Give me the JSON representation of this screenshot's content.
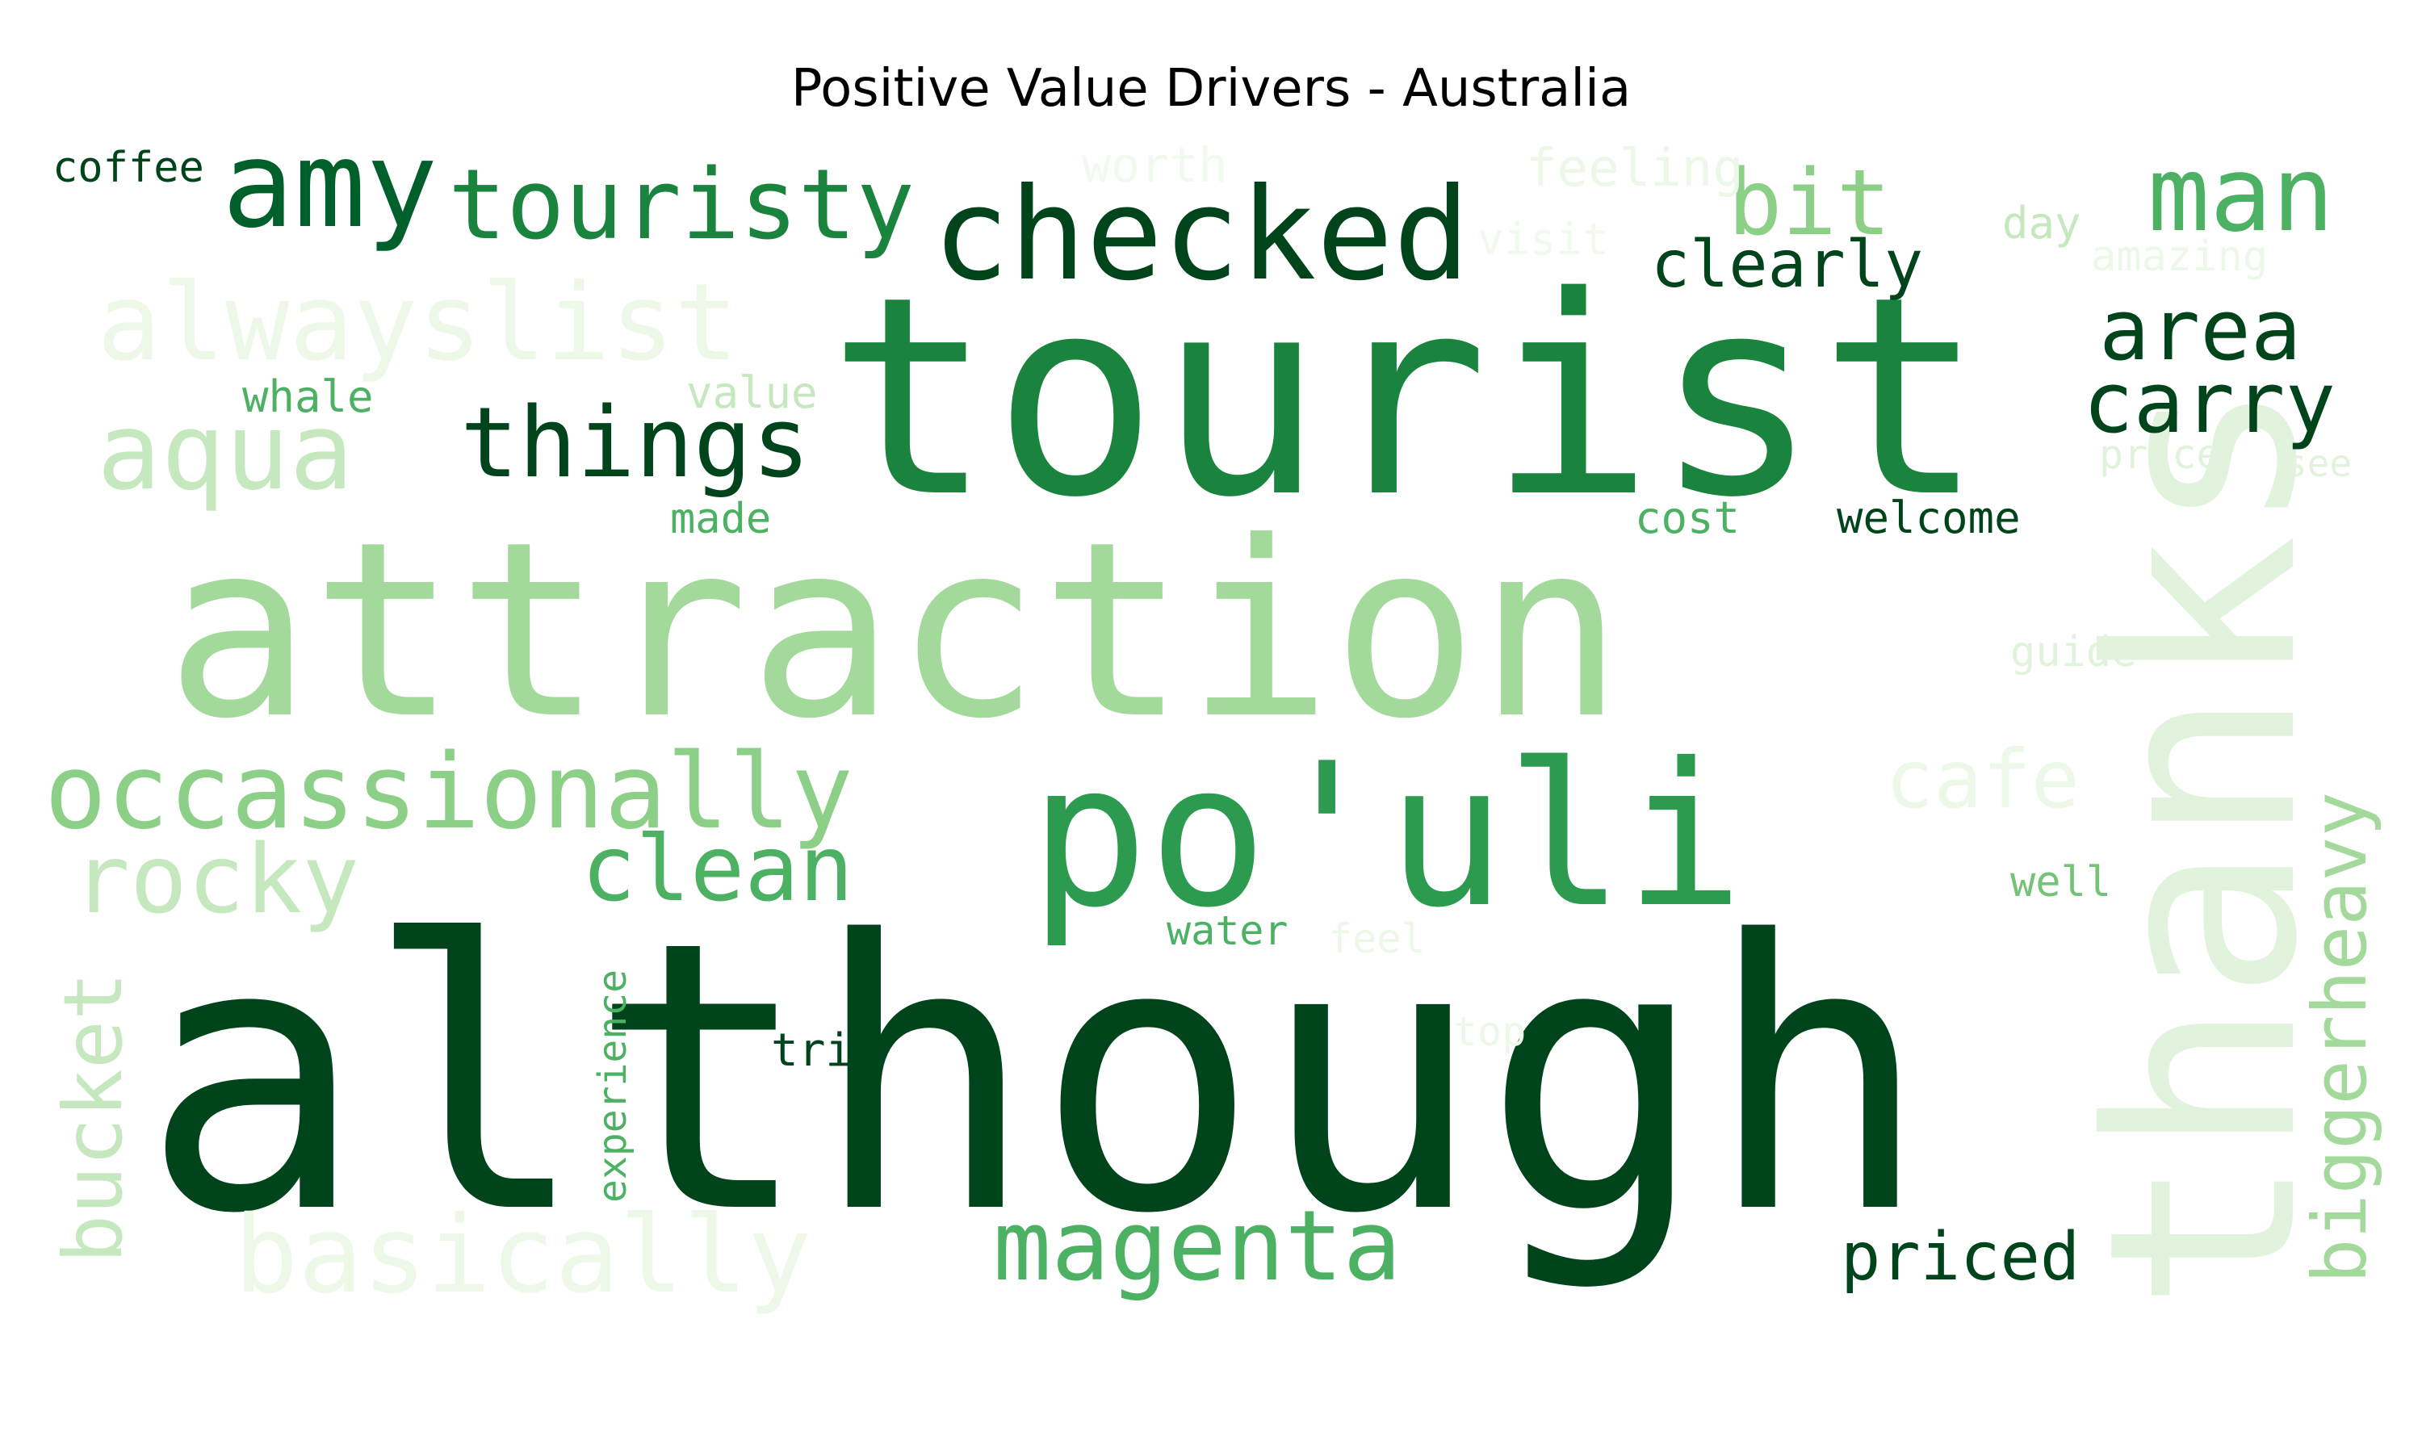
{
  "title": "Positive Value Drivers - Australia",
  "palette": {
    "g1": "#00441b",
    "g2": "#00602b",
    "g3": "#1a843f",
    "g4": "#2d9b4f",
    "g5": "#4db163",
    "g6": "#74c376",
    "g7": "#a3d99b",
    "g8": "#c6e8bf",
    "g9": "#e1f3dc",
    "g10": "#edf8e9"
  },
  "words": [
    {
      "text": "although",
      "color": "#00441b"
    },
    {
      "text": "attraction",
      "color": "#a3d99b"
    },
    {
      "text": "tourist",
      "color": "#1a843f"
    },
    {
      "text": "thanks",
      "color": "#e1f3dc"
    },
    {
      "text": "po'uli",
      "color": "#2d9b4f"
    },
    {
      "text": "checked",
      "color": "#00441b"
    },
    {
      "text": "amy",
      "color": "#00602b"
    },
    {
      "text": "touristy",
      "color": "#1a843f"
    },
    {
      "text": "alwayslist",
      "color": "#edf8e9"
    },
    {
      "text": "aqua",
      "color": "#c6e8bf"
    },
    {
      "text": "things",
      "color": "#00441b"
    },
    {
      "text": "occassionally",
      "color": "#8ccf87"
    },
    {
      "text": "rocky",
      "color": "#c6e8bf"
    },
    {
      "text": "clean",
      "color": "#4db163"
    },
    {
      "text": "basically",
      "color": "#edf8e9"
    },
    {
      "text": "magenta",
      "color": "#4db163"
    },
    {
      "text": "bucket",
      "color": "#c6e8bf"
    },
    {
      "text": "man",
      "color": "#4db163"
    },
    {
      "text": "bit",
      "color": "#8ccf87"
    },
    {
      "text": "area",
      "color": "#00441b"
    },
    {
      "text": "carry",
      "color": "#00441b"
    },
    {
      "text": "clearly",
      "color": "#00441b"
    },
    {
      "text": "biggerheavy",
      "color": "#a3d99b"
    },
    {
      "text": "priced",
      "color": "#00441b"
    },
    {
      "text": "cafe",
      "color": "#edf8e9"
    },
    {
      "text": "coffee",
      "color": "#00441b"
    },
    {
      "text": "whale",
      "color": "#4db163"
    },
    {
      "text": "value",
      "color": "#c6e8bf"
    },
    {
      "text": "made",
      "color": "#4db163"
    },
    {
      "text": "cost",
      "color": "#4db163"
    },
    {
      "text": "welcome",
      "color": "#00441b"
    },
    {
      "text": "experience",
      "color": "#4db163"
    },
    {
      "text": "trip",
      "color": "#00441b"
    },
    {
      "text": "water",
      "color": "#4db163"
    },
    {
      "text": "feel",
      "color": "#edf8e9"
    },
    {
      "text": "top",
      "color": "#edf8e9"
    },
    {
      "text": "well",
      "color": "#74c376"
    },
    {
      "text": "guide",
      "color": "#e1f3dc"
    },
    {
      "text": "price",
      "color": "#e1f3dc"
    },
    {
      "text": "see",
      "color": "#e1f3dc"
    },
    {
      "text": "day",
      "color": "#c6e8bf"
    },
    {
      "text": "amazing",
      "color": "#edf8e9"
    },
    {
      "text": "feeling",
      "color": "#edf8e9"
    },
    {
      "text": "worth",
      "color": "#f2faef"
    },
    {
      "text": "visit",
      "color": "#f2faef"
    }
  ]
}
